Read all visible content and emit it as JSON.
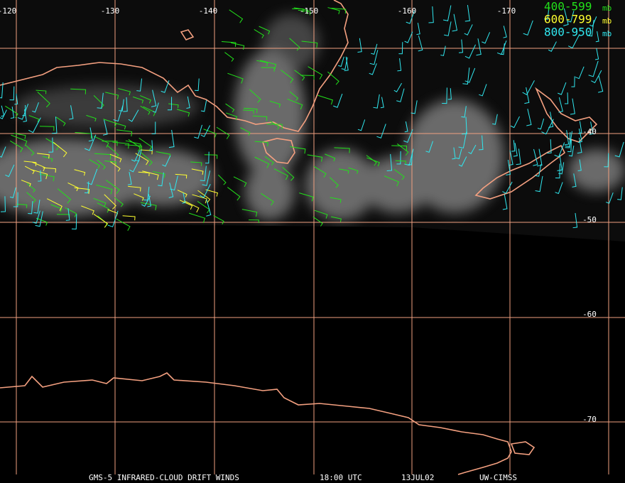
{
  "map": {
    "longitude_labels": [
      "-120",
      "-130",
      "-140",
      "-150",
      "-160",
      "-170"
    ],
    "latitude_labels": [
      "-40",
      "-50",
      "-60",
      "-70"
    ],
    "legend": [
      {
        "range": "400-599",
        "unit": "mb",
        "color": "#22e01a"
      },
      {
        "range": "600-799",
        "unit": "mb",
        "color": "#ffff30"
      },
      {
        "range": "800-950",
        "unit": "mb",
        "color": "#30e8f0"
      }
    ],
    "footer": [
      "GMS-5 INFRARED-CLOUD DRIFT WINDS",
      "18:00 UTC",
      "13JUL02",
      "UW-CIMSS"
    ]
  }
}
